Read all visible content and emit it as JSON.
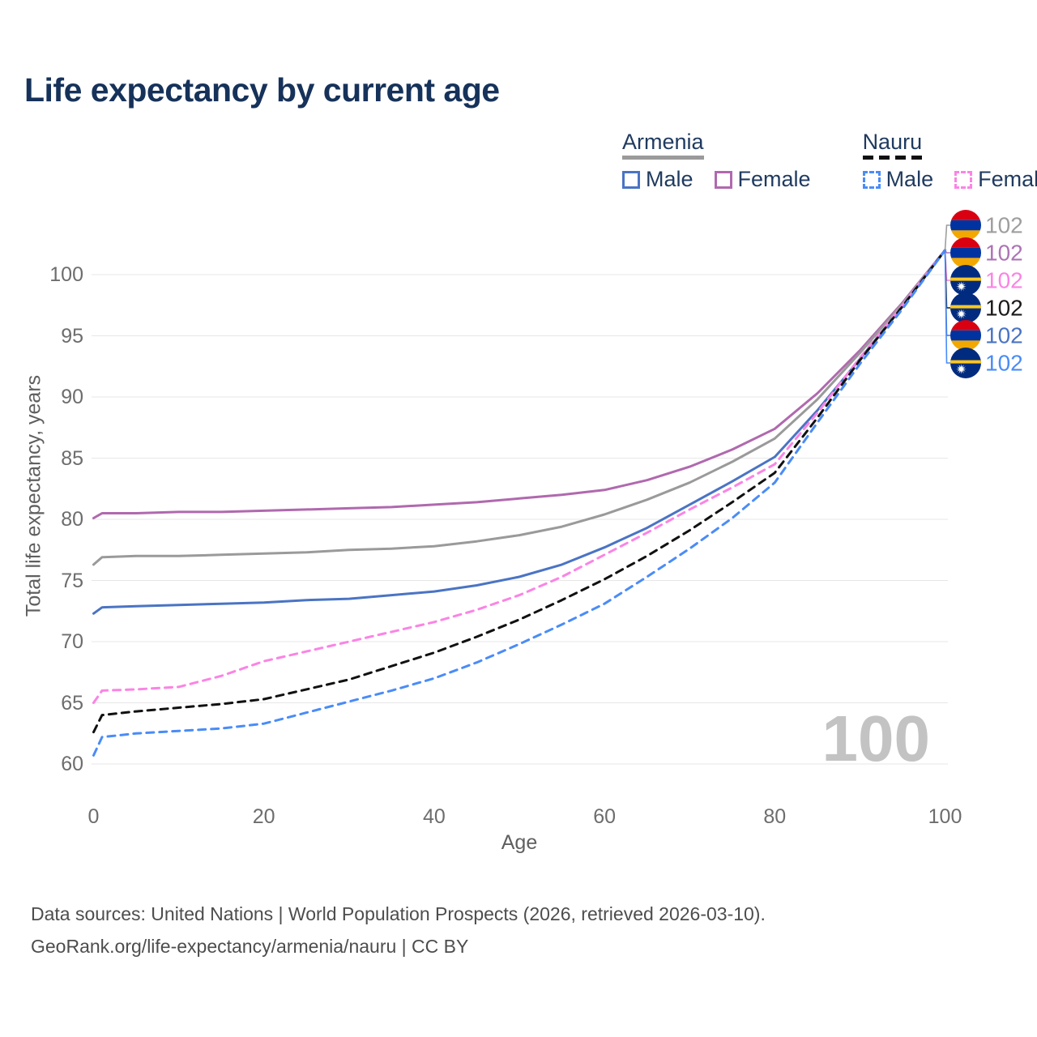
{
  "title": "Life expectancy by current age",
  "legend": {
    "groups": [
      {
        "title": "Armenia",
        "line_style": "solid",
        "line_color": "#9a9a9a",
        "items": [
          {
            "label": "Male",
            "swatch": "solid",
            "color": "#4a74c4"
          },
          {
            "label": "Female",
            "swatch": "solid",
            "color": "#b069ae"
          }
        ]
      },
      {
        "title": "Nauru",
        "line_style": "dashed",
        "line_color": "#111111",
        "items": [
          {
            "label": "Male",
            "swatch": "dashed",
            "color": "#4a8cf7"
          },
          {
            "label": "Female",
            "swatch": "dashed",
            "color": "#fb84e4"
          }
        ]
      }
    ]
  },
  "chart_data": {
    "type": "line",
    "title": "Life expectancy by current age",
    "xlabel": "Age",
    "ylabel": "Total life expectancy, years",
    "x_ticks": [
      0,
      20,
      40,
      60,
      80,
      100
    ],
    "y_ticks": [
      60,
      65,
      70,
      75,
      80,
      85,
      90,
      95,
      100
    ],
    "xlim": [
      0,
      100
    ],
    "ylim": [
      58.5,
      103.5
    ],
    "grid": "horizontal-only",
    "legend_position": "top-right",
    "age_counter": "100",
    "x": [
      0,
      1,
      5,
      10,
      15,
      20,
      25,
      30,
      35,
      40,
      45,
      50,
      55,
      60,
      65,
      70,
      75,
      80,
      85,
      90,
      95,
      100
    ],
    "series": [
      {
        "name": "Armenia Female",
        "country": "Armenia",
        "sex": "Female",
        "color": "#b069ae",
        "dash": "solid",
        "end_value": 102,
        "values": [
          80.1,
          80.5,
          80.5,
          80.6,
          80.6,
          80.7,
          80.8,
          80.9,
          81.0,
          81.2,
          81.4,
          81.7,
          82.0,
          82.4,
          83.2,
          84.3,
          85.7,
          87.4,
          90.3,
          93.8,
          97.7,
          102
        ]
      },
      {
        "name": "Armenia",
        "country": "Armenia",
        "sex": "All",
        "color": "#9a9a9a",
        "dash": "solid",
        "end_value": 102,
        "values": [
          76.3,
          76.9,
          77.0,
          77.0,
          77.1,
          77.2,
          77.3,
          77.5,
          77.6,
          77.8,
          78.2,
          78.7,
          79.4,
          80.4,
          81.6,
          83.0,
          84.7,
          86.6,
          89.8,
          93.6,
          97.6,
          102
        ]
      },
      {
        "name": "Armenia Male",
        "country": "Armenia",
        "sex": "Male",
        "color": "#4a74c4",
        "dash": "solid",
        "end_value": 102,
        "values": [
          72.3,
          72.8,
          72.9,
          73.0,
          73.1,
          73.2,
          73.4,
          73.5,
          73.8,
          74.1,
          74.6,
          75.3,
          76.3,
          77.7,
          79.3,
          81.2,
          83.1,
          85.1,
          88.9,
          93.1,
          97.4,
          102
        ]
      },
      {
        "name": "Nauru Female",
        "country": "Nauru",
        "sex": "Female",
        "color": "#fb84e4",
        "dash": "dashed",
        "end_value": 102,
        "values": [
          65.0,
          66.0,
          66.1,
          66.3,
          67.2,
          68.4,
          69.2,
          70.0,
          70.8,
          71.6,
          72.6,
          73.8,
          75.3,
          77.1,
          78.9,
          80.8,
          82.6,
          84.5,
          88.7,
          93.2,
          97.5,
          102
        ]
      },
      {
        "name": "Nauru",
        "country": "Nauru",
        "sex": "All",
        "color": "#111111",
        "dash": "dashed",
        "end_value": 102,
        "values": [
          62.6,
          64.0,
          64.3,
          64.6,
          64.9,
          65.3,
          66.1,
          66.9,
          68.0,
          69.1,
          70.4,
          71.8,
          73.4,
          75.1,
          77.0,
          79.1,
          81.4,
          83.8,
          88.3,
          93.0,
          97.4,
          102
        ]
      },
      {
        "name": "Nauru Male",
        "country": "Nauru",
        "sex": "Male",
        "color": "#4a8cf7",
        "dash": "dashed",
        "end_value": 102,
        "values": [
          60.7,
          62.2,
          62.5,
          62.7,
          62.9,
          63.3,
          64.2,
          65.1,
          66.0,
          67.0,
          68.3,
          69.8,
          71.4,
          73.1,
          75.3,
          77.6,
          80.1,
          83.0,
          87.9,
          92.7,
          97.2,
          102
        ]
      }
    ]
  },
  "end_labels": [
    {
      "flag": "armenia",
      "value": "102",
      "color": "#9e9e9e"
    },
    {
      "flag": "armenia",
      "value": "102",
      "color": "#ad74b5"
    },
    {
      "flag": "nauru",
      "value": "102",
      "color": "#fb84e4"
    },
    {
      "flag": "nauru",
      "value": "102",
      "color": "#1a1a1a"
    },
    {
      "flag": "armenia",
      "value": "102",
      "color": "#4a74c4"
    },
    {
      "flag": "nauru",
      "value": "102",
      "color": "#4a8cf7"
    }
  ],
  "flag_colors": {
    "armenia": {
      "red": "#D90012",
      "blue": "#0033A0",
      "orange": "#F2A800"
    },
    "nauru": {
      "field": "#002B7F",
      "stripe": "#FFC61E",
      "star": "#ffffff"
    }
  },
  "footer": {
    "line1": "Data sources: United Nations | World Population Prospects (2026, retrieved 2026-03-10).",
    "line2": "GeoRank.org/life-expectancy/armenia/nauru | CC BY"
  }
}
